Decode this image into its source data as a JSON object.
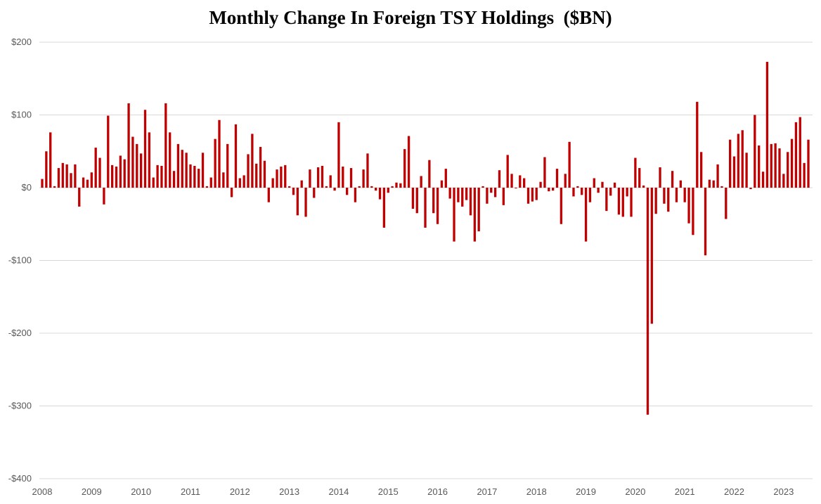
{
  "chart_data": {
    "type": "bar",
    "title": "Monthly Change In Foreign TSY Holdings  ($BN)",
    "xlabel": "",
    "ylabel": "",
    "ylim": [
      -400,
      200
    ],
    "y_ticks": [
      200,
      100,
      0,
      -100,
      -200,
      -300,
      -400
    ],
    "y_tick_labels": [
      "$200",
      "$100",
      "$0",
      "-$100",
      "-$200",
      "-$300",
      "-$400"
    ],
    "x_ticks": [
      "2008",
      "2009",
      "2010",
      "2011",
      "2012",
      "2013",
      "2014",
      "2015",
      "2016",
      "2017",
      "2018",
      "2019",
      "2020",
      "2021",
      "2022",
      "2023"
    ],
    "grid": true,
    "legend": "none",
    "bar_color": "#c00000",
    "start_month": "2008-01",
    "series": [
      {
        "values": [
          12,
          50,
          76,
          2,
          27,
          34,
          32,
          20,
          32,
          -26,
          14,
          11,
          21,
          55,
          41,
          -23,
          99,
          31,
          29,
          44,
          39,
          116,
          70,
          60,
          47,
          107,
          76,
          14,
          31,
          30,
          116,
          76,
          23,
          60,
          52,
          48,
          32,
          30,
          26,
          48,
          2,
          14,
          67,
          93,
          21,
          60,
          -13,
          87,
          13,
          17,
          46,
          74,
          33,
          56,
          37,
          -20,
          13,
          25,
          29,
          31,
          2,
          -10,
          -38,
          10,
          -40,
          25,
          -14,
          28,
          30,
          2,
          17,
          -4,
          90,
          29,
          -10,
          27,
          -20,
          2,
          25,
          47,
          2,
          -4,
          -16,
          -55,
          -7,
          2,
          7,
          6,
          53,
          71,
          -29,
          -35,
          16,
          -55,
          38,
          -35,
          -50,
          10,
          26,
          -15,
          -74,
          -20,
          -26,
          -17,
          -38,
          -74,
          -60,
          2,
          -22,
          -7,
          -13,
          24,
          -24,
          45,
          19,
          -1,
          17,
          13,
          -22,
          -19,
          -17,
          8,
          42,
          -5,
          -4,
          26,
          -50,
          19,
          63,
          -12,
          2,
          -10,
          -74,
          -20,
          13,
          -7,
          8,
          -32,
          -11,
          7,
          -37,
          -40,
          -12,
          -40,
          41,
          27,
          3,
          -312,
          -187,
          -36,
          28,
          -22,
          -33,
          23,
          -20,
          10,
          -20,
          -49,
          -65,
          118,
          49,
          -93,
          11,
          10,
          32,
          2,
          -43,
          66,
          43,
          74,
          79,
          48,
          -2,
          100,
          58,
          22,
          173,
          60,
          61,
          54,
          19,
          49,
          67,
          90,
          97,
          34,
          66
        ]
      }
    ]
  }
}
